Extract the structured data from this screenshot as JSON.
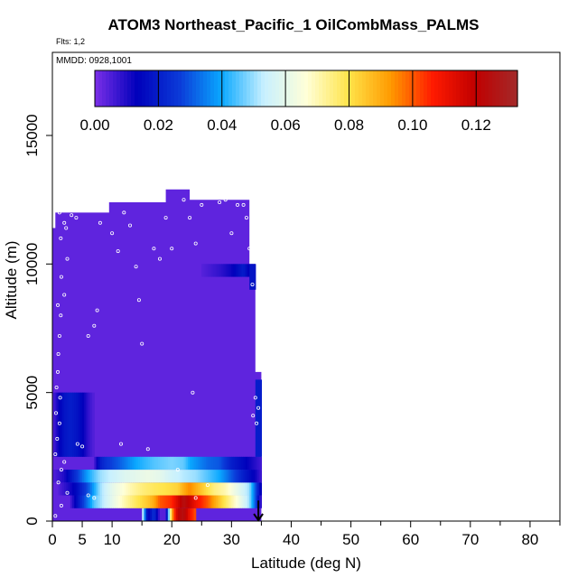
{
  "title": "ATOM3 Northeast_Pacific_1 OilCombMass_PALMS",
  "flights_label": "Flts: 1,2",
  "mmdd_label": "MMDD: 0928,1001",
  "chart_data": {
    "type": "heatmap",
    "xlabel": "Latitude (deg N)",
    "ylabel": "Altitude (m)",
    "xlim": [
      0,
      85
    ],
    "ylim": [
      0,
      15000
    ],
    "x_ticks": [
      0,
      5,
      10,
      20,
      30,
      40,
      50,
      60,
      70,
      80
    ],
    "x_minor_ticks": [
      15,
      25,
      35,
      45,
      55,
      65,
      75,
      85
    ],
    "y_ticks": [
      0,
      5000,
      10000,
      15000
    ],
    "colorbar": {
      "min": 0.0,
      "max": 0.133,
      "ticks": [
        0.0,
        0.02,
        0.04,
        0.06,
        0.08,
        0.1,
        0.12
      ],
      "tick_labels": [
        "0.00",
        "0.02",
        "0.04",
        "0.06",
        "0.08",
        "0.10",
        "0.12"
      ],
      "colors": [
        "#7b2fe8",
        "#0000bb",
        "#0b3ad8",
        "#0aa8ff",
        "#c8f0ff",
        "#ffffd8",
        "#ffe44a",
        "#ff9a00",
        "#ff1a00",
        "#c00000",
        "#a32a2a"
      ]
    },
    "background_value": 0.003,
    "bands": [
      {
        "y0": 0,
        "y1": 500,
        "x0": 15,
        "x1": 24,
        "stops": [
          [
            15,
            0.06
          ],
          [
            16,
            0.01
          ],
          [
            17,
            0.025
          ],
          [
            18,
            0.004
          ],
          [
            19,
            0.004
          ],
          [
            20,
            0.09
          ],
          [
            21,
            0.12
          ],
          [
            22,
            0.125
          ],
          [
            23,
            0.11
          ],
          [
            24,
            0.1
          ]
        ]
      },
      {
        "y0": 500,
        "y1": 1000,
        "x0": 3,
        "x1": 35,
        "stops": [
          [
            3,
            0.005
          ],
          [
            5,
            0.025
          ],
          [
            7,
            0.045
          ],
          [
            9,
            0.055
          ],
          [
            12,
            0.07
          ],
          [
            14,
            0.078
          ],
          [
            16,
            0.085
          ],
          [
            17,
            0.09
          ],
          [
            18,
            0.1
          ],
          [
            20,
            0.105
          ],
          [
            21,
            0.115
          ],
          [
            22,
            0.125
          ],
          [
            23,
            0.118
          ],
          [
            24,
            0.11
          ],
          [
            25,
            0.105
          ],
          [
            26,
            0.1
          ],
          [
            27,
            0.092
          ],
          [
            28,
            0.085
          ],
          [
            29,
            0.078
          ],
          [
            31,
            0.065
          ],
          [
            33,
            0.05
          ],
          [
            34,
            0.03
          ],
          [
            35,
            0.004
          ]
        ]
      },
      {
        "y0": 1000,
        "y1": 1500,
        "x0": 1,
        "x1": 35,
        "stops": [
          [
            1,
            0.004
          ],
          [
            4,
            0.015
          ],
          [
            6,
            0.03
          ],
          [
            8,
            0.05
          ],
          [
            10,
            0.06
          ],
          [
            13,
            0.07
          ],
          [
            15,
            0.075
          ],
          [
            17,
            0.078
          ],
          [
            19,
            0.08
          ],
          [
            21,
            0.083
          ],
          [
            22,
            0.09
          ],
          [
            23,
            0.095
          ],
          [
            24,
            0.09
          ],
          [
            25,
            0.085
          ],
          [
            27,
            0.075
          ],
          [
            29,
            0.07
          ],
          [
            31,
            0.06
          ],
          [
            33,
            0.05
          ],
          [
            34,
            0.03
          ],
          [
            35,
            0.01
          ]
        ]
      },
      {
        "y0": 1500,
        "y1": 2000,
        "x0": 0,
        "x1": 35,
        "stops": [
          [
            0,
            0.004
          ],
          [
            2,
            0.01
          ],
          [
            4,
            0.025
          ],
          [
            6,
            0.04
          ],
          [
            8,
            0.05
          ],
          [
            12,
            0.058
          ],
          [
            16,
            0.062
          ],
          [
            18,
            0.06
          ],
          [
            20,
            0.055
          ],
          [
            22,
            0.052
          ],
          [
            24,
            0.05
          ],
          [
            26,
            0.045
          ],
          [
            28,
            0.04
          ],
          [
            30,
            0.03
          ],
          [
            32,
            0.02
          ],
          [
            34,
            0.012
          ],
          [
            35,
            0.006
          ]
        ]
      },
      {
        "y0": 2000,
        "y1": 2500,
        "x0": 7,
        "x1": 35,
        "stops": [
          [
            7,
            0.005
          ],
          [
            8,
            0.02
          ],
          [
            9,
            0.025
          ],
          [
            11,
            0.03
          ],
          [
            14,
            0.04
          ],
          [
            17,
            0.045
          ],
          [
            20,
            0.048
          ],
          [
            22,
            0.046
          ],
          [
            23,
            0.04
          ],
          [
            26,
            0.032
          ],
          [
            28,
            0.03
          ],
          [
            30,
            0.02
          ],
          [
            32,
            0.015
          ],
          [
            35,
            0.006
          ]
        ]
      },
      {
        "y0": 2500,
        "y1": 5000,
        "x0": 0,
        "x1": 7,
        "stops": [
          [
            0,
            0.004
          ],
          [
            1,
            0.012
          ],
          [
            2,
            0.018
          ],
          [
            3,
            0.02
          ],
          [
            4,
            0.018
          ],
          [
            5,
            0.014
          ],
          [
            6,
            0.008
          ],
          [
            7,
            0.004
          ]
        ]
      },
      {
        "y0": 9500,
        "y1": 10000,
        "x0": 25,
        "x1": 33,
        "stops": [
          [
            25,
            0.004
          ],
          [
            28,
            0.008
          ],
          [
            30,
            0.012
          ],
          [
            31,
            0.016
          ],
          [
            32,
            0.02
          ],
          [
            33,
            0.012
          ]
        ]
      },
      {
        "y0": 2500,
        "y1": 5500,
        "x0": 34,
        "x1": 35,
        "stops": [
          [
            34,
            0.02
          ],
          [
            35,
            0.02
          ]
        ]
      },
      {
        "y0": 9000,
        "y1": 10000,
        "x0": 33,
        "x1": 34,
        "stops": [
          [
            33,
            0.018
          ],
          [
            34,
            0.018
          ]
        ]
      }
    ],
    "sample_points": [
      [
        0.5,
        200
      ],
      [
        1.5,
        600
      ],
      [
        2.5,
        1100
      ],
      [
        6,
        1000
      ],
      [
        7,
        900
      ],
      [
        1,
        1500
      ],
      [
        1.5,
        2000
      ],
      [
        2,
        2300
      ],
      [
        0.5,
        2600
      ],
      [
        0.8,
        3200
      ],
      [
        1.2,
        3800
      ],
      [
        0.6,
        4200
      ],
      [
        1.3,
        4800
      ],
      [
        0.7,
        5200
      ],
      [
        0.9,
        5800
      ],
      [
        1,
        6500
      ],
      [
        1.2,
        7200
      ],
      [
        1.4,
        8000
      ],
      [
        0.9,
        8400
      ],
      [
        2,
        8800
      ],
      [
        1.5,
        9500
      ],
      [
        2.5,
        10200
      ],
      [
        1.4,
        11000
      ],
      [
        2,
        11600
      ],
      [
        1.2,
        12000
      ],
      [
        2.3,
        11400
      ],
      [
        3.2,
        11900
      ],
      [
        4,
        11800
      ],
      [
        4.2,
        3000
      ],
      [
        5,
        2900
      ],
      [
        6,
        7200
      ],
      [
        7,
        7600
      ],
      [
        7.5,
        8200
      ],
      [
        8,
        11600
      ],
      [
        10,
        11200
      ],
      [
        11,
        10500
      ],
      [
        12,
        12000
      ],
      [
        13,
        11500
      ],
      [
        11.5,
        3000
      ],
      [
        14,
        9900
      ],
      [
        14.5,
        8600
      ],
      [
        15,
        6900
      ],
      [
        16,
        2800
      ],
      [
        17,
        10600
      ],
      [
        18,
        10200
      ],
      [
        19,
        11800
      ],
      [
        20,
        10600
      ],
      [
        21,
        2000
      ],
      [
        22,
        12500
      ],
      [
        23,
        11800
      ],
      [
        23.5,
        5000
      ],
      [
        24,
        10800
      ],
      [
        25,
        12300
      ],
      [
        26,
        12600
      ],
      [
        27,
        12800
      ],
      [
        28,
        12400
      ],
      [
        29,
        12500
      ],
      [
        30,
        11200
      ],
      [
        31,
        12300
      ],
      [
        32,
        12300
      ],
      [
        32.5,
        11800
      ],
      [
        33,
        10600
      ],
      [
        33.5,
        9200
      ],
      [
        34,
        4800
      ],
      [
        34.5,
        4400
      ],
      [
        33.6,
        4100
      ],
      [
        34.2,
        3800
      ],
      [
        26,
        1400
      ],
      [
        24,
        900
      ]
    ],
    "end_arrow_x": 34.5
  }
}
